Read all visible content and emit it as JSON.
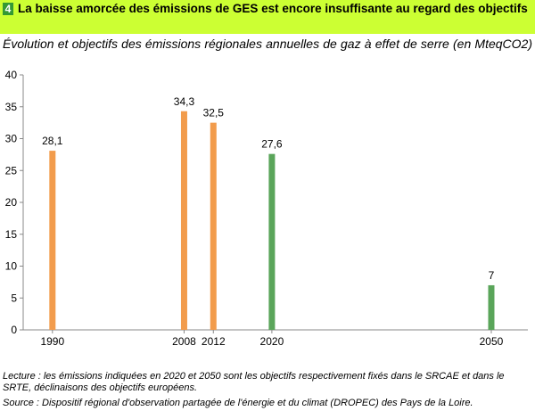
{
  "header": {
    "number": "4",
    "title": "La baisse amorcée des émissions de GES est encore insuffisante au regard des objectifs"
  },
  "subtitle": "Évolution et objectifs des émissions régionales annuelles de gaz à effet de serre (en MteqCO2)",
  "chart_data": {
    "type": "bar",
    "title": "",
    "xlabel": "",
    "ylabel": "",
    "x_scale": "time (years)",
    "categories": [
      "1990",
      "2008",
      "2012",
      "2020",
      "2050"
    ],
    "values": [
      28.1,
      34.3,
      32.5,
      27.6,
      7
    ],
    "value_labels": [
      "28,1",
      "34,3",
      "32,5",
      "27,6",
      "7"
    ],
    "bar_kind": [
      "observed",
      "observed",
      "observed",
      "objective",
      "objective"
    ],
    "x_range": [
      1986,
      2055
    ],
    "ylim": [
      0,
      40
    ],
    "yticks": [
      0,
      5,
      10,
      15,
      20,
      25,
      30,
      35,
      40
    ],
    "grid": false,
    "legend": "none",
    "colors": {
      "observed": "#f29c4c",
      "objective": "#5aa55a",
      "axis": "#888888"
    }
  },
  "notes": {
    "lecture": "Lecture : les émissions indiquées en 2020 et 2050 sont les objectifs respectivement fixés dans le SRCAE et dans le SRTE, déclinaisons des objectifs européens.",
    "source": "Source : Dispositif régional d'observation partagée de l'énergie et du climat (DROPEC) des Pays de la Loire."
  }
}
